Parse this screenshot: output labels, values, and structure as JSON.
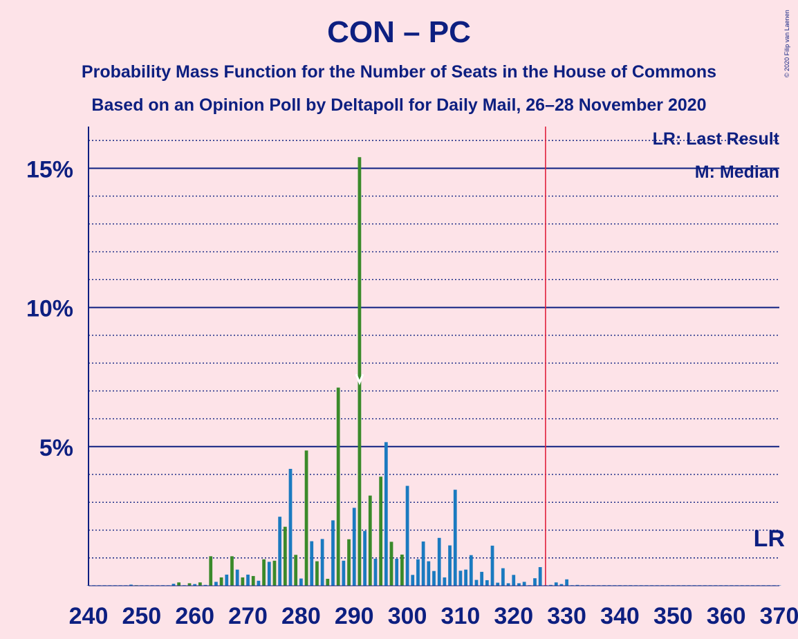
{
  "header": {
    "title": "CON – PC",
    "subtitle1": "Probability Mass Function for the Number of Seats in the House of Commons",
    "subtitle2": "Based on an Opinion Poll by Deltapoll for Daily Mail, 26–28 November 2020",
    "copyright": "© 2020 Filip van Laenen"
  },
  "legend": {
    "lr": "LR: Last Result",
    "m": "M: Median",
    "lr_short": "LR"
  },
  "colors": {
    "background": "#fde3e8",
    "axis": "#0d1f80",
    "bar_green": "#3a8a2a",
    "bar_blue": "#1a7ac0",
    "last_result_line": "#e0203c"
  },
  "chart_data": {
    "type": "bar",
    "xlim": [
      240,
      370
    ],
    "ylim": [
      0,
      16.5
    ],
    "x_ticks": [
      240,
      250,
      260,
      270,
      280,
      290,
      300,
      310,
      320,
      330,
      340,
      350,
      360,
      370
    ],
    "y_ticks": [
      {
        "value": 5,
        "label": "5%"
      },
      {
        "value": 10,
        "label": "10%"
      },
      {
        "value": 15,
        "label": "15%"
      }
    ],
    "last_result": 326,
    "median": 291,
    "x": [
      240,
      241,
      242,
      243,
      244,
      245,
      246,
      247,
      248,
      249,
      250,
      251,
      252,
      253,
      254,
      255,
      256,
      257,
      258,
      259,
      260,
      261,
      262,
      263,
      264,
      265,
      266,
      267,
      268,
      269,
      270,
      271,
      272,
      273,
      274,
      275,
      276,
      277,
      278,
      279,
      280,
      281,
      282,
      283,
      284,
      285,
      286,
      287,
      288,
      289,
      290,
      291,
      292,
      293,
      294,
      295,
      296,
      297,
      298,
      299,
      300,
      301,
      302,
      303,
      304,
      305,
      306,
      307,
      308,
      309,
      310,
      311,
      312,
      313,
      314,
      315,
      316,
      317,
      318,
      319,
      320,
      321,
      322,
      323,
      324,
      325,
      326,
      327,
      328,
      329,
      330,
      331,
      332,
      333,
      334,
      335,
      336,
      337,
      338,
      339,
      340,
      341,
      342,
      343,
      344,
      345,
      346,
      347,
      348,
      349,
      350,
      351,
      352,
      353,
      354,
      355,
      356,
      357,
      358,
      359,
      360,
      361,
      362,
      363,
      364,
      365,
      366,
      367,
      368,
      369,
      370
    ],
    "series": [
      {
        "color": "#3a8a2a",
        "values": [
          0,
          0,
          0,
          0,
          0,
          0,
          0,
          0,
          0.04,
          0.01,
          0,
          0,
          0,
          0,
          0.02,
          0,
          0.07,
          0.12,
          0.02,
          0.09,
          0.06,
          0.12,
          0.03,
          1.06,
          0.14,
          0.3,
          0.4,
          1.06,
          0.58,
          0.3,
          0.4,
          0.35,
          0.18,
          0.95,
          0.86,
          0.9,
          2.48,
          2.12,
          4.2,
          1.11,
          0.26,
          4.86,
          1.6,
          0.88,
          1.68,
          0.25,
          2.35,
          7.12,
          0.9,
          1.67,
          2.8,
          15.4,
          1.97,
          3.24,
          0.97,
          3.92,
          5.16,
          1.58,
          0.97,
          1.12,
          3.59,
          0.39,
          0.95,
          1.59,
          0.88,
          0.53,
          1.72,
          0.3,
          1.45,
          3.45,
          0.54,
          0.58,
          1.1,
          0.21,
          0.5,
          0.2,
          1.44,
          0.11,
          0.63,
          0.09,
          0.39,
          0.09,
          0.14,
          0.02,
          0.27,
          0.67,
          0.02,
          0.03,
          0.12,
          0.06,
          0.23,
          0.02,
          0.03,
          0.01,
          0.02,
          0.01,
          0,
          0.01,
          0.02,
          0,
          0.01,
          0,
          0.01,
          0,
          0,
          0,
          0,
          0,
          0,
          0,
          0,
          0,
          0,
          0,
          0,
          0,
          0,
          0,
          0,
          0,
          0,
          0,
          0,
          0,
          0,
          0,
          0,
          0,
          0,
          0,
          0
        ]
      }
    ]
  }
}
